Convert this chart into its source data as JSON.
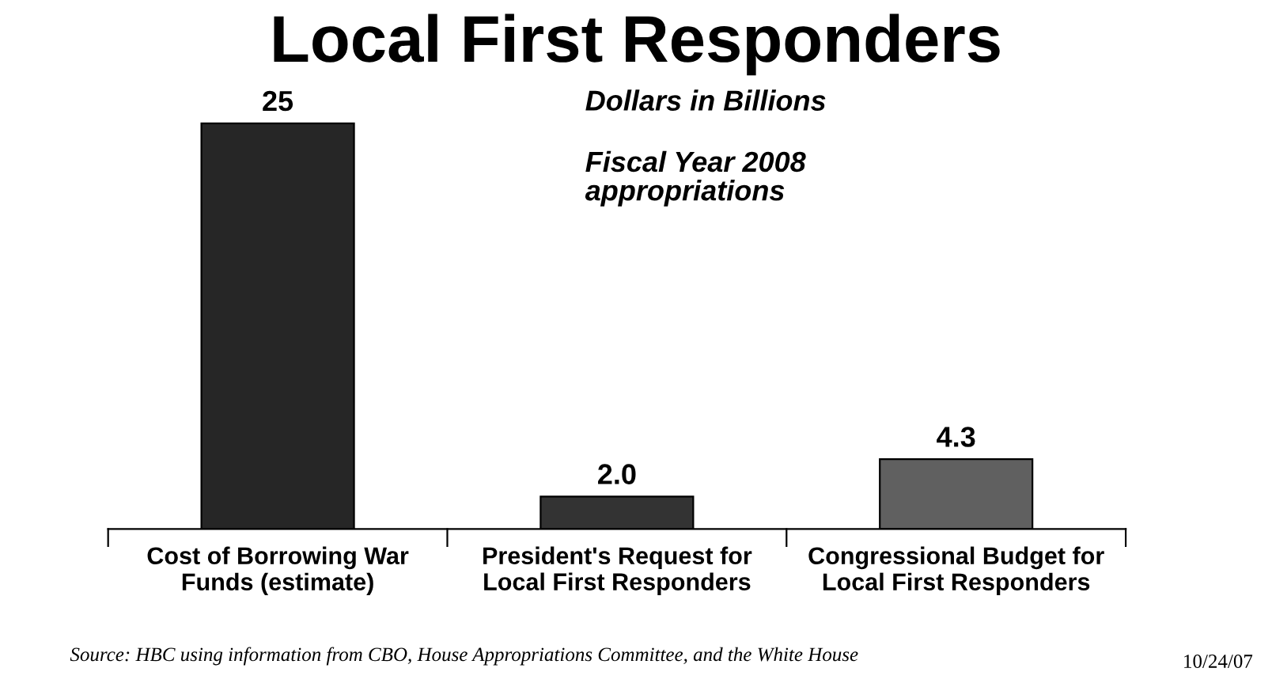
{
  "chart_data": {
    "type": "bar",
    "title": "Local First Responders",
    "categories": [
      "Cost of Borrowing War\nFunds (estimate)",
      "President's Request for\nLocal First Responders",
      "Congressional Budget for\nLocal First Responders"
    ],
    "values": [
      25,
      2.0,
      4.3
    ],
    "value_labels": [
      "25",
      "2.0",
      "4.3"
    ],
    "colors": [
      "#262626",
      "#333333",
      "#606060"
    ],
    "annotations": [
      "Dollars in Billions",
      "Fiscal Year 2008\nappropriations",
      "Source: HBC using information from CBO, House Appropriations Committee, and the White House",
      "10/24/07"
    ],
    "grid": false,
    "legend": false
  }
}
